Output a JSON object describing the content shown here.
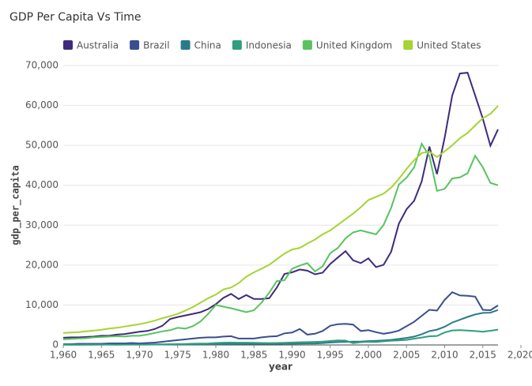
{
  "chart_data": {
    "type": "line",
    "title": "GDP Per Capita Vs Time",
    "x_label": "year",
    "y_label": "gdp_per_capita",
    "x": [
      1960,
      1961,
      1962,
      1963,
      1964,
      1965,
      1966,
      1967,
      1968,
      1969,
      1970,
      1971,
      1972,
      1973,
      1974,
      1975,
      1976,
      1977,
      1978,
      1979,
      1980,
      1981,
      1982,
      1983,
      1984,
      1985,
      1986,
      1987,
      1988,
      1989,
      1990,
      1991,
      1992,
      1993,
      1994,
      1995,
      1996,
      1997,
      1998,
      1999,
      2000,
      2001,
      2002,
      2003,
      2004,
      2005,
      2006,
      2007,
      2008,
      2009,
      2010,
      2011,
      2012,
      2013,
      2014,
      2015,
      2016,
      2017
    ],
    "series": [
      {
        "name": "Australia",
        "color": "#3f2b7c",
        "values": [
          1800,
          1900,
          1900,
          2000,
          2100,
          2300,
          2300,
          2600,
          2700,
          3000,
          3300,
          3500,
          4000,
          4800,
          6500,
          7000,
          7400,
          7800,
          8200,
          9000,
          10200,
          11800,
          12800,
          11500,
          12500,
          11500,
          11500,
          11700,
          14400,
          17800,
          18200,
          18900,
          18600,
          17700,
          18100,
          20300,
          21900,
          23500,
          21200,
          20500,
          21700,
          19500,
          20100,
          23400,
          30400,
          34000,
          36100,
          41000,
          49700,
          42800,
          51900,
          62500,
          68000,
          68200,
          62500,
          56700,
          49900,
          54000
        ]
      },
      {
        "name": "Brazil",
        "color": "#3a4d8f",
        "values": [
          200,
          200,
          300,
          300,
          300,
          300,
          400,
          400,
          400,
          500,
          400,
          500,
          600,
          800,
          1000,
          1200,
          1400,
          1600,
          1800,
          1900,
          1900,
          2100,
          2200,
          1600,
          1600,
          1600,
          1900,
          2100,
          2200,
          2900,
          3100,
          4000,
          2600,
          2800,
          3500,
          4800,
          5200,
          5300,
          5100,
          3500,
          3700,
          3200,
          2800,
          3100,
          3600,
          4700,
          5800,
          7300,
          8800,
          8600,
          11300,
          13200,
          12400,
          12300,
          12100,
          8800,
          8700,
          9900
        ]
      },
      {
        "name": "China",
        "color": "#2b7a8a",
        "values": [
          90,
          80,
          70,
          70,
          80,
          100,
          100,
          100,
          90,
          100,
          110,
          120,
          130,
          160,
          160,
          180,
          160,
          180,
          160,
          180,
          190,
          200,
          200,
          250,
          250,
          290,
          280,
          250,
          280,
          310,
          320,
          330,
          370,
          380,
          470,
          610,
          710,
          780,
          830,
          870,
          960,
          1050,
          1150,
          1290,
          1510,
          1750,
          2100,
          2690,
          3470,
          3830,
          4550,
          5620,
          6300,
          7020,
          7640,
          8030,
          8080,
          8760
        ]
      },
      {
        "name": "Indonesia",
        "color": "#2f9e7e",
        "values": [
          60,
          60,
          60,
          70,
          70,
          70,
          70,
          60,
          70,
          80,
          80,
          80,
          90,
          110,
          180,
          220,
          260,
          320,
          360,
          370,
          500,
          570,
          590,
          580,
          580,
          540,
          490,
          480,
          500,
          550,
          620,
          680,
          720,
          780,
          860,
          980,
          1140,
          1080,
          460,
          690,
          800,
          750,
          900,
          1070,
          1150,
          1270,
          1590,
          1860,
          2170,
          2260,
          3120,
          3640,
          3700,
          3620,
          3490,
          3330,
          3560,
          3840
        ]
      },
      {
        "name": "United Kingdom",
        "color": "#58c35f",
        "values": [
          1400,
          1500,
          1600,
          1700,
          1900,
          2000,
          2100,
          2200,
          2100,
          2300,
          2300,
          2600,
          3000,
          3400,
          3700,
          4300,
          4100,
          4700,
          5900,
          7800,
          10000,
          9600,
          9200,
          8700,
          8200,
          8700,
          10600,
          13100,
          16000,
          16200,
          19100,
          19900,
          20500,
          18400,
          19700,
          23000,
          24300,
          26700,
          28200,
          28700,
          28200,
          27700,
          30100,
          34400,
          40200,
          41900,
          44500,
          50400,
          47300,
          38600,
          39100,
          41700,
          42000,
          43000,
          47400,
          44500,
          40600,
          40000
        ]
      },
      {
        "name": "United States",
        "color": "#a5d433",
        "values": [
          3000,
          3100,
          3200,
          3400,
          3600,
          3800,
          4100,
          4300,
          4600,
          4900,
          5200,
          5600,
          6100,
          6700,
          7200,
          7800,
          8600,
          9500,
          10600,
          11700,
          12600,
          13900,
          14400,
          15500,
          17100,
          18200,
          19100,
          20100,
          21500,
          22900,
          23900,
          24300,
          25400,
          26400,
          27700,
          28700,
          30100,
          31500,
          32900,
          34500,
          36300,
          37100,
          37900,
          39400,
          41600,
          44100,
          46300,
          48100,
          48400,
          47100,
          48500,
          50000,
          51800,
          53100,
          55000,
          56800,
          57900,
          59900
        ]
      }
    ],
    "xlim": [
      1960,
      2020
    ],
    "ylim": [
      0,
      70000
    ],
    "xticks": [
      {
        "value": 1960,
        "label": "1,960"
      },
      {
        "value": 1965,
        "label": "1,965"
      },
      {
        "value": 1970,
        "label": "1,970"
      },
      {
        "value": 1975,
        "label": "1,975"
      },
      {
        "value": 1980,
        "label": "1,980"
      },
      {
        "value": 1985,
        "label": "1,985"
      },
      {
        "value": 1990,
        "label": "1,990"
      },
      {
        "value": 1995,
        "label": "1,995"
      },
      {
        "value": 2000,
        "label": "2,000"
      },
      {
        "value": 2005,
        "label": "2,005"
      },
      {
        "value": 2010,
        "label": "2,010"
      },
      {
        "value": 2015,
        "label": "2,015"
      },
      {
        "value": 2020,
        "label": "2,020"
      }
    ],
    "yticks": [
      0,
      {
        "value": 10000,
        "label": "10,000"
      },
      {
        "value": 20000,
        "label": "20,000"
      },
      {
        "value": 30000,
        "label": "30,000"
      },
      {
        "value": 40000,
        "label": "40,000"
      },
      {
        "value": 50000,
        "label": "50,000"
      },
      {
        "value": 60000,
        "label": "60,000"
      },
      {
        "value": 70000,
        "label": "70,000"
      }
    ],
    "grid": true
  }
}
